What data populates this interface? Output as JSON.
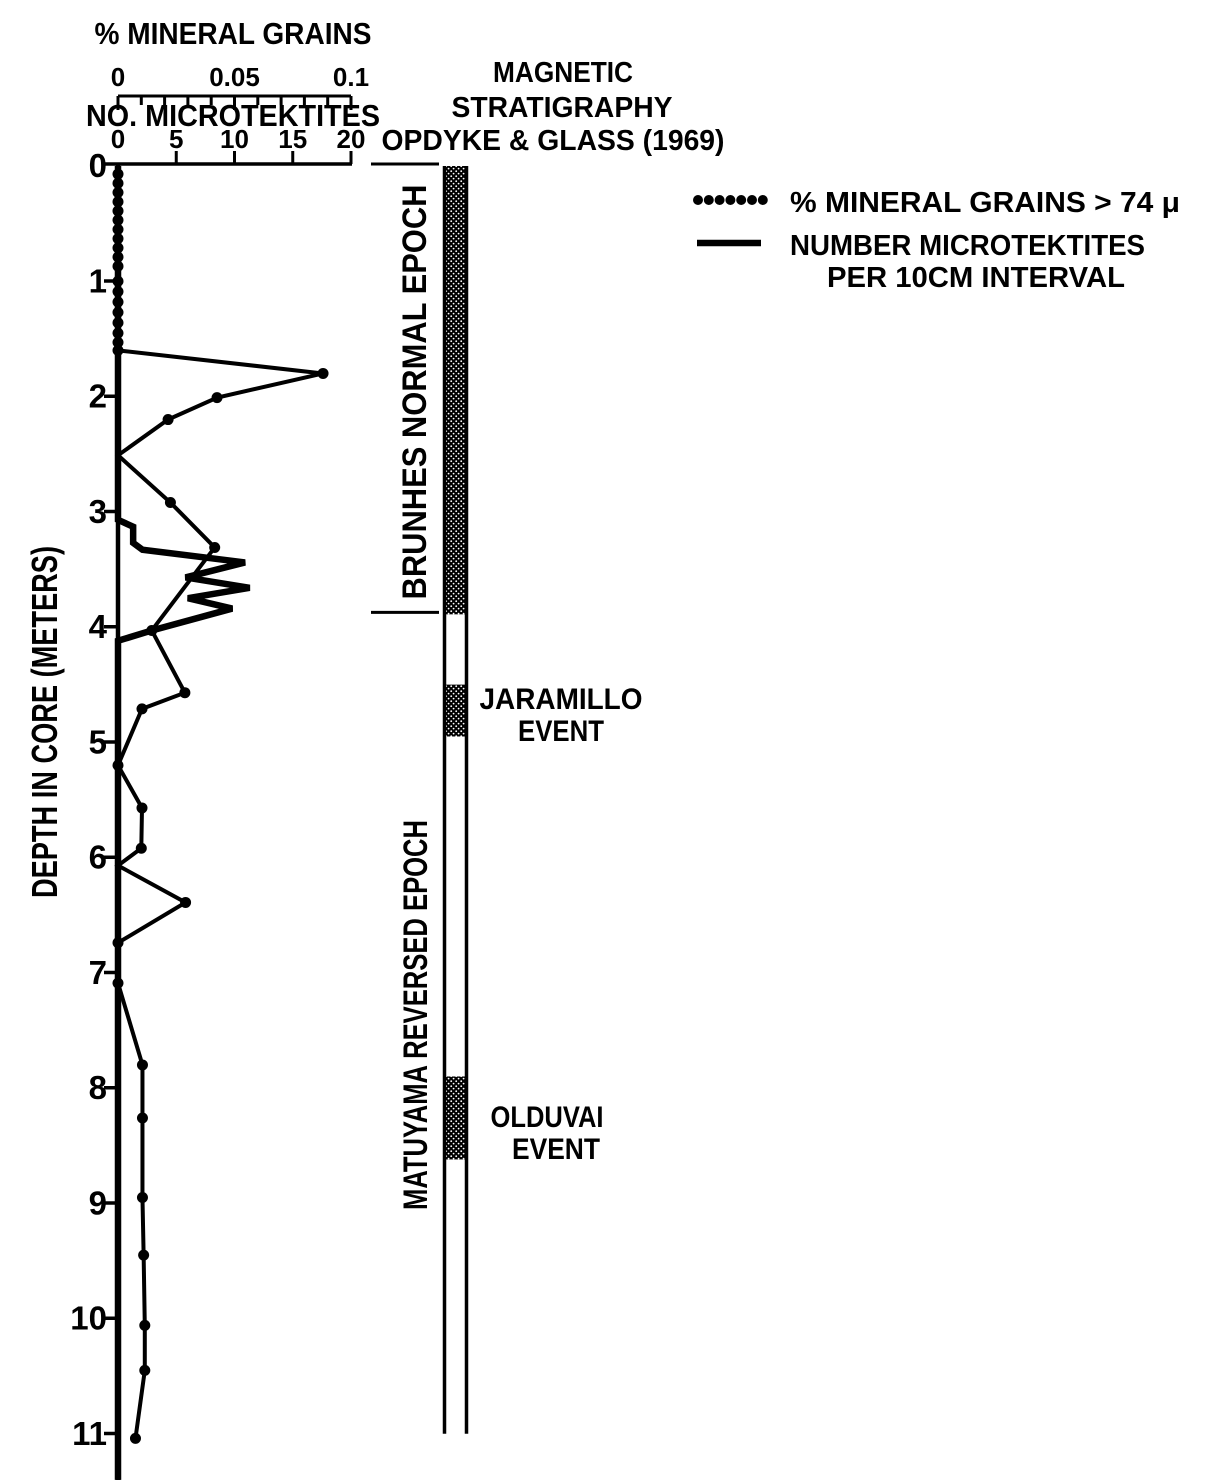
{
  "titles": {
    "mineral_axis": "% MINERAL GRAINS",
    "micro_axis": "NO. MICROTEKTITES",
    "depth_axis": "DEPTH IN CORE (METERS)"
  },
  "strat": {
    "header": [
      "MAGNETIC",
      "STRATIGRAPHY",
      "OPDYKE & GLASS (1969)"
    ],
    "epochs": [
      {
        "label": "BRUNHES NORMAL EPOCH",
        "from_depth_m": 0,
        "to_depth_m": 3.89,
        "polarity": "normal",
        "filled": true
      },
      {
        "label": "MATUYAMA REVERSED EPOCH",
        "from_depth_m": 3.89,
        "to_depth_m": 11.0,
        "polarity": "reversed",
        "filled": false
      }
    ],
    "events": [
      {
        "lines": [
          "JARAMILLO",
          "EVENT"
        ],
        "from_depth_m": 4.5,
        "to_depth_m": 4.95,
        "filled": true
      },
      {
        "lines": [
          "OLDUVAI",
          "EVENT"
        ],
        "from_depth_m": 7.9,
        "to_depth_m": 8.62,
        "filled": true
      }
    ],
    "boundary_tick_depths_m": [
      0,
      3.89
    ]
  },
  "legend": {
    "entries": [
      {
        "symbol": "dotted-line",
        "label": "% MINERAL GRAINS > 74 μ"
      },
      {
        "symbol": "solid-line",
        "line1": "NUMBER MICROTEKTITES",
        "line2": "PER 10CM INTERVAL"
      }
    ]
  },
  "colors": {
    "ink": "#000000",
    "paper": "#ffffff"
  },
  "chart_data": {
    "type": "line",
    "orientation": "depth-profile (depth increases downward)",
    "axes": {
      "mineral_pct": {
        "min": 0,
        "max": 0.1,
        "minor_step": 0.01,
        "tick_labels": [
          "0",
          "0.05",
          "0.1"
        ],
        "labeled_values": [
          0,
          0.05,
          0.1
        ]
      },
      "microtektite_count": {
        "min": 0,
        "max": 20,
        "step": 5,
        "tick_labels": [
          "0",
          "5",
          "10",
          "15",
          "20"
        ],
        "labeled_values": [
          0,
          5,
          10,
          15,
          20
        ]
      },
      "depth_m": {
        "min": 0,
        "max": 11,
        "tick_labels": [
          "0",
          "1",
          "2",
          "3",
          "4",
          "5",
          "6",
          "7",
          "8",
          "9",
          "10",
          "11"
        ],
        "axis_bottom_m": 11.4
      }
    },
    "series": [
      {
        "name": "% mineral grains > 74 μ",
        "style": "dotted-with-round-markers",
        "unit": "percent",
        "points": [
          [
            0.02,
            0
          ],
          [
            1.6,
            0
          ],
          [
            1.8,
            0.088
          ],
          [
            2.01,
            0.0425
          ],
          [
            2.2,
            0.0215
          ],
          [
            2.51,
            0
          ],
          [
            2.92,
            0.0225
          ],
          [
            3.31,
            0.0415
          ],
          [
            4.03,
            0.0145
          ],
          [
            4.57,
            0.0287
          ],
          [
            4.71,
            0.0103
          ],
          [
            5.2,
            0
          ],
          [
            5.57,
            0.0103
          ],
          [
            5.92,
            0.01
          ],
          [
            6.07,
            0
          ],
          [
            6.39,
            0.029
          ],
          [
            6.74,
            0
          ],
          [
            7.09,
            0
          ],
          [
            7.8,
            0.0105
          ],
          [
            8.26,
            0.0105
          ],
          [
            8.95,
            0.0105
          ],
          [
            9.45,
            0.011
          ],
          [
            10.06,
            0.0115
          ],
          [
            10.45,
            0.0115
          ],
          [
            11.04,
            0.0075
          ]
        ],
        "point_markers": [
          [
            0.07,
            0
          ],
          [
            0.15,
            0
          ],
          [
            0.23,
            0
          ],
          [
            0.31,
            0
          ],
          [
            0.39,
            0
          ],
          [
            0.47,
            0
          ],
          [
            0.55,
            0
          ],
          [
            0.63,
            0
          ],
          [
            0.71,
            0
          ],
          [
            0.79,
            0
          ],
          [
            0.87,
            0
          ],
          [
            1.0,
            0
          ],
          [
            1.09,
            0
          ],
          [
            1.18,
            0
          ],
          [
            1.27,
            0
          ],
          [
            1.36,
            0
          ],
          [
            1.45,
            0
          ],
          [
            1.53,
            0
          ],
          [
            1.6,
            0
          ],
          [
            1.8,
            0.088
          ],
          [
            2.01,
            0.0425
          ],
          [
            2.2,
            0.0215
          ],
          [
            2.92,
            0.0225
          ],
          [
            3.31,
            0.0415
          ],
          [
            4.03,
            0.0145
          ],
          [
            4.57,
            0.0287
          ],
          [
            4.71,
            0.0103
          ],
          [
            5.2,
            0
          ],
          [
            5.57,
            0.0103
          ],
          [
            5.92,
            0.01
          ],
          [
            6.39,
            0.029
          ],
          [
            6.74,
            0
          ],
          [
            7.09,
            0
          ],
          [
            7.8,
            0.0105
          ],
          [
            8.26,
            0.0105
          ],
          [
            8.95,
            0.0105
          ],
          [
            9.45,
            0.011
          ],
          [
            10.06,
            0.0115
          ],
          [
            10.45,
            0.0115
          ],
          [
            11.04,
            0.0075
          ]
        ]
      },
      {
        "name": "number microtektites per 10cm interval",
        "style": "solid",
        "unit": "count",
        "points": [
          [
            0,
            0
          ],
          [
            3.07,
            0
          ],
          [
            3.13,
            1.3
          ],
          [
            3.27,
            1.3
          ],
          [
            3.33,
            2.1
          ],
          [
            3.44,
            10.9
          ],
          [
            3.57,
            5.8
          ],
          [
            3.66,
            11.3
          ],
          [
            3.75,
            6.0
          ],
          [
            3.84,
            9.8
          ],
          [
            4.03,
            2.9
          ],
          [
            4.12,
            0
          ],
          [
            11.4,
            0
          ]
        ]
      }
    ]
  }
}
